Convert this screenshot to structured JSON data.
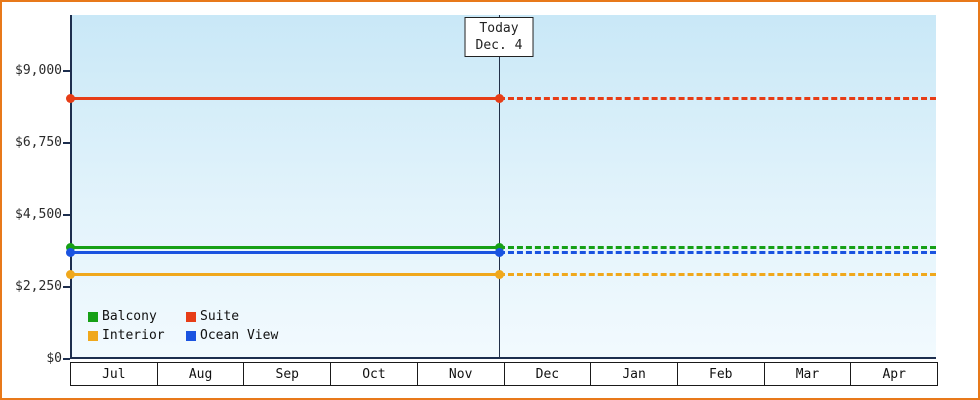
{
  "chart_data": {
    "type": "line",
    "title": "",
    "x_categories": [
      "Jul",
      "Aug",
      "Sep",
      "Oct",
      "Nov",
      "Dec",
      "Jan",
      "Feb",
      "Mar",
      "Apr"
    ],
    "y_axis": {
      "ticks": [
        {
          "label": "$0",
          "value": 0
        },
        {
          "label": "$2,250",
          "value": 2250
        },
        {
          "label": "$4,500",
          "value": 4500
        },
        {
          "label": "$6,750",
          "value": 6750
        },
        {
          "label": "$9,000",
          "value": 9000
        }
      ],
      "max_value": 10750
    },
    "today_marker": {
      "line1": "Today",
      "line2": "Dec. 4",
      "x_fraction": 0.495
    },
    "series": [
      {
        "name": "Suite",
        "color": "#e73d17",
        "value": 8150,
        "style": "solid-then-dashed"
      },
      {
        "name": "Balcony",
        "color": "#16a016",
        "value": 3500,
        "style": "solid-then-dashed"
      },
      {
        "name": "Ocean View",
        "color": "#1a53e0",
        "value": 3320,
        "style": "solid-then-dashed"
      },
      {
        "name": "Interior",
        "color": "#f0a81c",
        "value": 2630,
        "style": "solid-then-dashed"
      }
    ],
    "legend": {
      "position": "bottom-left",
      "order": [
        "Balcony",
        "Suite",
        "Interior",
        "Ocean View"
      ]
    },
    "grid": false
  },
  "colors": {
    "frame_border": "#e8791a",
    "axis": "#1d2e4e",
    "plot_gradient_top": "#c9e8f7",
    "plot_gradient_bottom": "#f2fafe",
    "text": "#222222"
  }
}
